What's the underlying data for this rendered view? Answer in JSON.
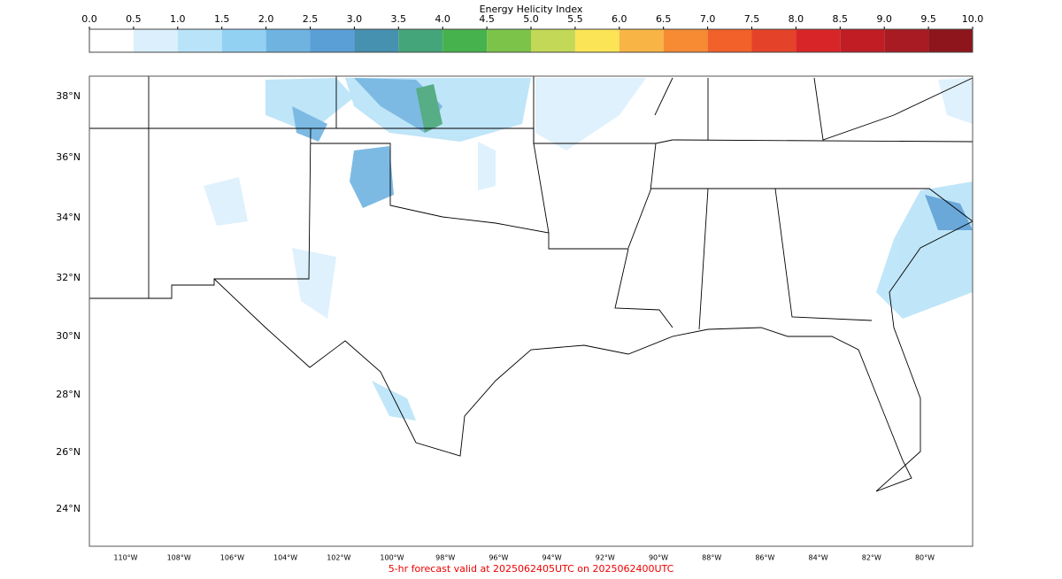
{
  "colorbar": {
    "title": "Energy Helicity Index",
    "ticks": [
      {
        "value": 0,
        "label": "0.0"
      },
      {
        "value": 0.5,
        "label": "0.5"
      },
      {
        "value": 1,
        "label": "1.0"
      },
      {
        "value": 1.5,
        "label": "1.5"
      },
      {
        "value": 2,
        "label": "2.0"
      },
      {
        "value": 2.5,
        "label": "2.5"
      },
      {
        "value": 3,
        "label": "3.0"
      },
      {
        "value": 3.5,
        "label": "3.5"
      },
      {
        "value": 4,
        "label": "4.0"
      },
      {
        "value": 4.5,
        "label": "4.5"
      },
      {
        "value": 5,
        "label": "5.0"
      },
      {
        "value": 5.5,
        "label": "5.5"
      },
      {
        "value": 6,
        "label": "6.0"
      },
      {
        "value": 6.5,
        "label": "6.5"
      },
      {
        "value": 7,
        "label": "7.0"
      },
      {
        "value": 7.5,
        "label": "7.5"
      },
      {
        "value": 8,
        "label": "8.0"
      },
      {
        "value": 8.5,
        "label": "8.5"
      },
      {
        "value": 9,
        "label": "9.0"
      },
      {
        "value": 9.5,
        "label": "9.5"
      },
      {
        "value": 10,
        "label": "10.0"
      }
    ],
    "colors": [
      "#ffffff",
      "#dbf0fc",
      "#b9e3f8",
      "#93d1f3",
      "#6fb3e1",
      "#5b9fd7",
      "#4690b0",
      "#45a57a",
      "#46b24d",
      "#7cc34a",
      "#c2d856",
      "#fbe455",
      "#f8b545",
      "#f68b33",
      "#f16129",
      "#e44329",
      "#d82628",
      "#c01d25",
      "#a81b22",
      "#8e151b"
    ]
  },
  "map": {
    "lat_labels": [
      "38°N",
      "36°N",
      "34°N",
      "32°N",
      "30°N",
      "28°N",
      "26°N",
      "24°N"
    ],
    "lon_labels": [
      "110°W",
      "108°W",
      "106°W",
      "104°W",
      "102°W",
      "100°W",
      "98°W",
      "96°W",
      "94°W",
      "92°W",
      "90°W",
      "88°W",
      "86°W",
      "84°W",
      "82°W",
      "80°W"
    ]
  },
  "footer": "5-hr forecast valid at 2025062405UTC on 2025062400UTC"
}
